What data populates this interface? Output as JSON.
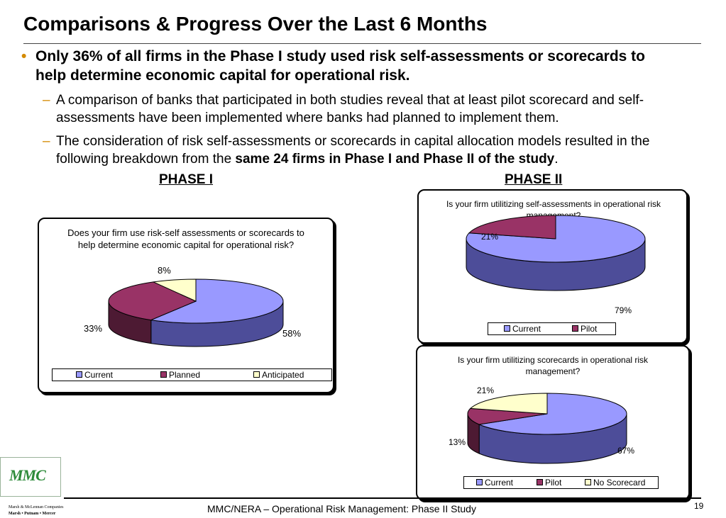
{
  "title": "Comparisons & Progress Over the Last 6 Months",
  "bullet": "Only 36% of all firms in the Phase I study used risk self-assessments or scorecards to help determine economic capital for operational risk.",
  "sub1": "A comparison of banks that participated in both studies reveal that at least pilot scorecard and self-assessments have been implemented where banks had planned to implement them.",
  "sub2": {
    "text": "The consideration of risk self-assessments or scorecards in capital allocation models resulted in the following breakdown from the ",
    "bold": "same 24 firms in Phase I and Phase II of the study",
    "end": "."
  },
  "bullet_marker": "•",
  "dash_marker": "–",
  "phase1_label": "PHASE I",
  "phase2_label": "PHASE II",
  "colors": {
    "current": "#9999ff",
    "current_side": "#4d4d99",
    "second": "#993366",
    "second_side": "#4d1a33",
    "third": "#ffffcc",
    "third_side": "#80806a",
    "accent": "#d48a00"
  },
  "chart_data": [
    {
      "type": "pie",
      "title": "Does your firm use risk-self assessments or scorecards to help determine economic capital for operational risk?",
      "categories": [
        "Current",
        "Planned",
        "Anticipated"
      ],
      "values": [
        58,
        33,
        8
      ],
      "labels": [
        "58%",
        "33%",
        "8%"
      ],
      "legend": "bottom"
    },
    {
      "type": "pie",
      "title": "Is your firm utilitizing self-assessments in operational risk management?",
      "categories": [
        "Current",
        "Pilot"
      ],
      "values": [
        79,
        21
      ],
      "labels": [
        "79%",
        "21%"
      ],
      "legend": "bottom"
    },
    {
      "type": "pie",
      "title": "Is your firm utilitizing scorecards in operational risk management?",
      "categories": [
        "Current",
        "Pilot",
        "No Scorecard"
      ],
      "values": [
        67,
        13,
        21
      ],
      "labels": [
        "67%",
        "13%",
        "21%"
      ],
      "legend": "bottom"
    }
  ],
  "footer": "MMC/NERA – Operational Risk Management: Phase II Study",
  "page_number": "19",
  "logo": {
    "mark": "MMC",
    "line1": "Marsh & McLennan Companies",
    "line2": "Marsh • Putnam • Mercer"
  }
}
